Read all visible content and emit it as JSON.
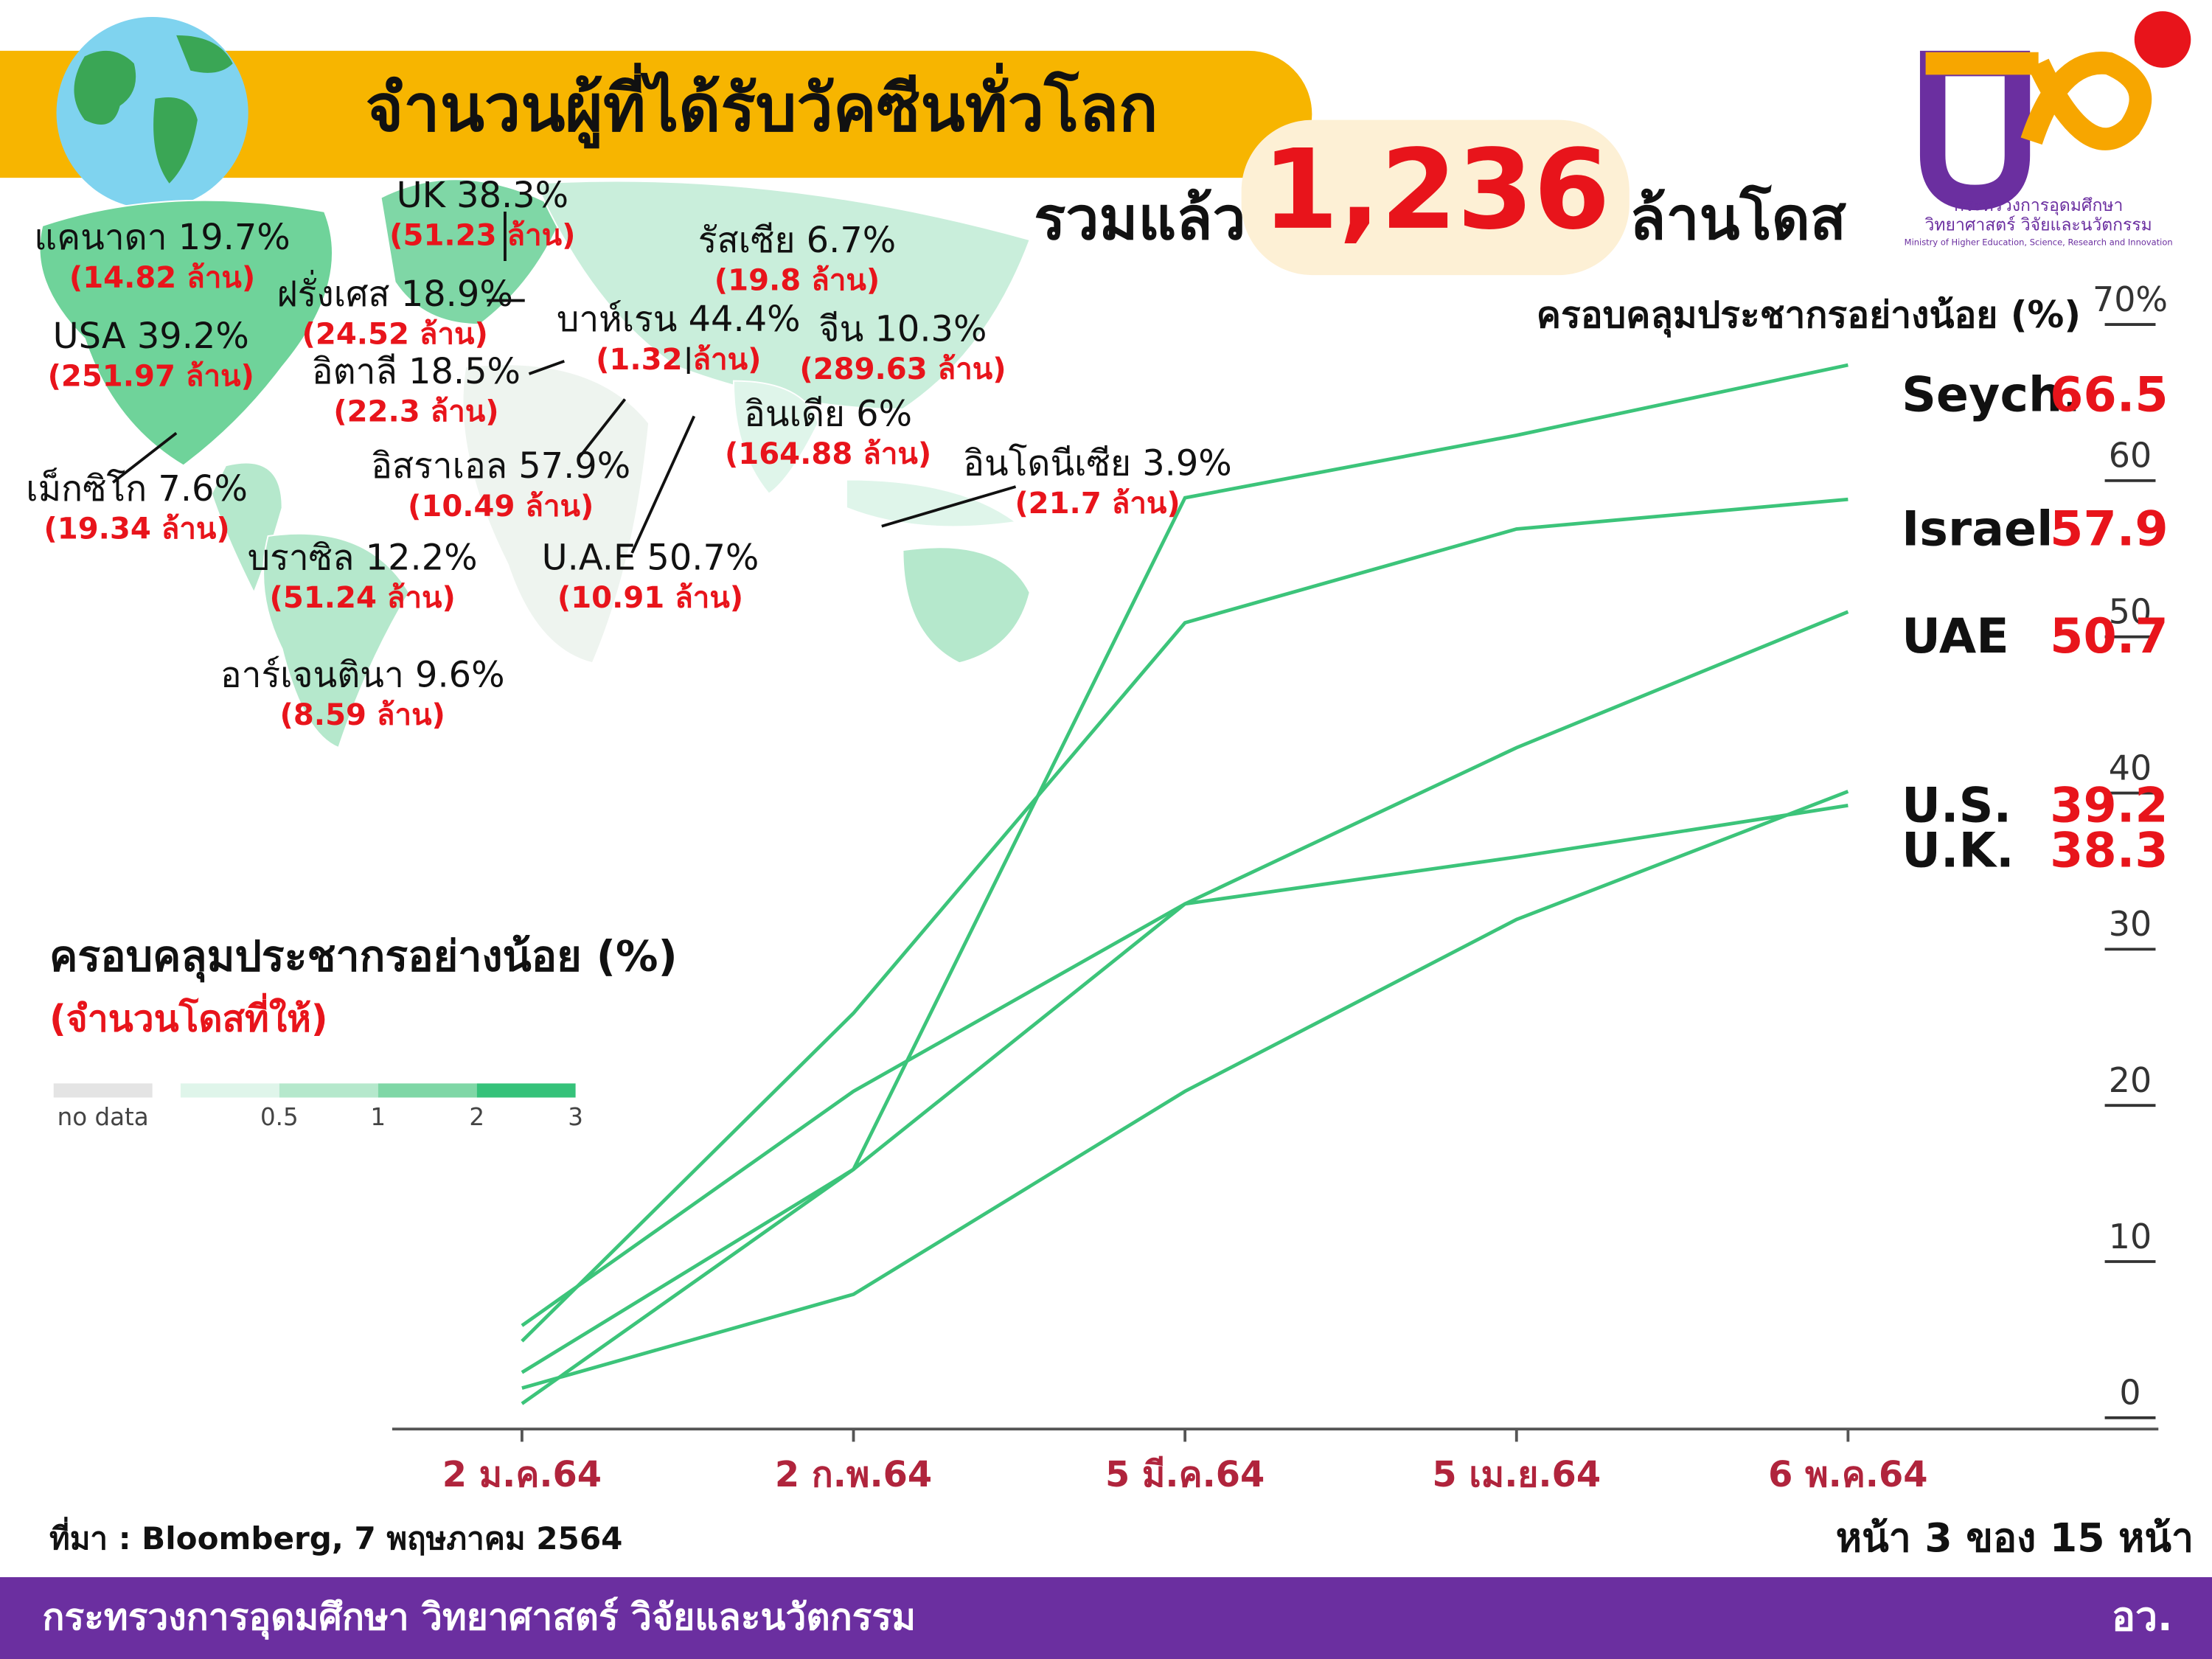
{
  "header": {
    "title": "จำนวนผู้ที่ได้รับวัคซีนทั่วโลก",
    "total_prefix": "รวมแล้ว",
    "total": "1,236",
    "total_suffix": "ล้านโดส"
  },
  "logo": {
    "line1": "กระทรวงการอุดมศึกษา",
    "line2": "วิทยาศาสตร์ วิจัยและนวัตกรรม",
    "line3": "Ministry of Higher Education, Science, Research and Innovation"
  },
  "map": {
    "countries": [
      {
        "label": "UK 38.3%",
        "doses": "(51.23 ล้าน)"
      },
      {
        "label": "แคนาดา 19.7%",
        "doses": "(14.82 ล้าน)"
      },
      {
        "label": "รัสเซีย 6.7%",
        "doses": "(19.8 ล้าน)"
      },
      {
        "label": "ฝรั่งเศส 18.9%",
        "doses": "(24.52 ล้าน)"
      },
      {
        "label": "บาห์เรน 44.4%",
        "doses": "(1.32 ล้าน)"
      },
      {
        "label": "จีน 10.3%",
        "doses": "(289.63 ล้าน)"
      },
      {
        "label": "USA 39.2%",
        "doses": "(251.97 ล้าน)"
      },
      {
        "label": "อิตาลี 18.5%",
        "doses": "(22.3 ล้าน)"
      },
      {
        "label": "อินเดีย 6%",
        "doses": "(164.88 ล้าน)"
      },
      {
        "label": "อินโดนีเซีย 3.9%",
        "doses": "(21.7 ล้าน)"
      },
      {
        "label": "อิสราเอล 57.9%",
        "doses": "(10.49 ล้าน)"
      },
      {
        "label": "เม็กซิโก 7.6%",
        "doses": "(19.34 ล้าน)"
      },
      {
        "label": "บราซิล 12.2%",
        "doses": "(51.24 ล้าน)"
      },
      {
        "label": "U.A.E 50.7%",
        "doses": "(10.91 ล้าน)"
      },
      {
        "label": "อาร์เจนตินา 9.6%",
        "doses": "(8.59 ล้าน)"
      }
    ],
    "legend_title": "ครอบคลุมประชากรอย่างน้อย (%)",
    "legend_subtitle": "(จำนวนโดสที่ให้)",
    "legend": [
      {
        "label": "no data",
        "color": "#e4e4e4"
      },
      {
        "label": "0.5",
        "color": "#dff5ea"
      },
      {
        "label": "1",
        "color": "#b5e8cc"
      },
      {
        "label": "2",
        "color": "#7fd7a6"
      },
      {
        "label": "3",
        "color": "#35c27a"
      }
    ]
  },
  "chart_data": {
    "type": "line",
    "y_label": "ครอบคลุมประชากรอย่างน้อย (%)",
    "categories": [
      "2 ม.ค.64",
      "2 ก.พ.64",
      "5 มี.ค.64",
      "5 เม.ย.64",
      "6 พ.ค.64"
    ],
    "series": [
      {
        "name": "Seych.",
        "color": "#3cc47a",
        "values": [
          0,
          15,
          58,
          62,
          66.5
        ]
      },
      {
        "name": "Israel",
        "color": "#3cc47a",
        "values": [
          4,
          25,
          50,
          56,
          57.9
        ]
      },
      {
        "name": "UAE",
        "color": "#3cc47a",
        "values": [
          5,
          20,
          32,
          42,
          50.7
        ]
      },
      {
        "name": "U.S.",
        "color": "#3cc47a",
        "values": [
          1,
          7,
          20,
          31,
          39.2
        ]
      },
      {
        "name": "U.K.",
        "color": "#3cc47a",
        "values": [
          2,
          15,
          32,
          35,
          38.3
        ]
      }
    ],
    "ylim": [
      0,
      70
    ],
    "yticks": [
      0,
      10,
      20,
      30,
      40,
      50,
      60,
      {
        "value": 70,
        "label": "70%"
      }
    ]
  },
  "footer": {
    "source": "ที่มา : Bloomberg, 7 พฤษภาคม 2564",
    "page": "หน้า 3 ของ 15 หน้า",
    "org": "กระทรวงการอุดมศึกษา วิทยาศาสตร์ วิจัยและนวัตกรรม",
    "short": "อว."
  }
}
